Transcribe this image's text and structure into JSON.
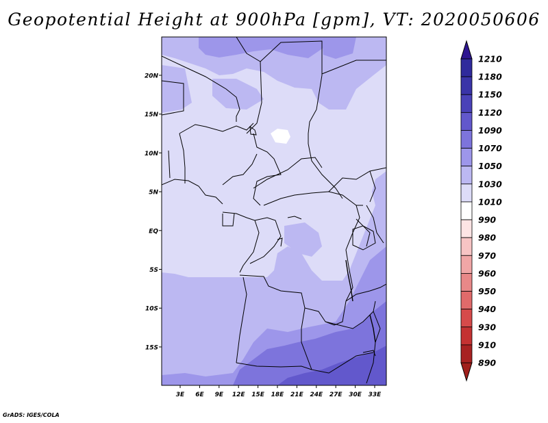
{
  "title": "Geopotential Height at 900hPa [gpm], VT: 2020050606",
  "credit": "GrADS: IGES/COLA",
  "map": {
    "lat_range": [
      -19.5,
      24.5
    ],
    "lon_range": [
      0,
      34
    ],
    "lat_ticks": [
      {
        "label": "20N"
      },
      {
        "label": "15N"
      },
      {
        "label": "10N"
      },
      {
        "label": "5N"
      },
      {
        "label": "EQ"
      },
      {
        "label": "5S"
      },
      {
        "label": "10S"
      },
      {
        "label": "15S"
      }
    ],
    "lon_ticks": [
      {
        "label": "3E"
      },
      {
        "label": "6E"
      },
      {
        "label": "9E"
      },
      {
        "label": "12E"
      },
      {
        "label": "15E"
      },
      {
        "label": "18E"
      },
      {
        "label": "21E"
      },
      {
        "label": "24E"
      },
      {
        "label": "27E"
      },
      {
        "label": "30E"
      },
      {
        "label": "33E"
      }
    ]
  },
  "colorbar": {
    "levels": [
      {
        "label": "1210",
        "color": "#3c1ea0"
      },
      {
        "label": "1180",
        "color": "#2f2a9c"
      },
      {
        "label": "1150",
        "color": "#3a34a8"
      },
      {
        "label": "1120",
        "color": "#4a42b8"
      },
      {
        "label": "1090",
        "color": "#6258cc"
      },
      {
        "label": "1070",
        "color": "#7d74dc"
      },
      {
        "label": "1050",
        "color": "#9d96ea"
      },
      {
        "label": "1030",
        "color": "#bcb8f2"
      },
      {
        "label": "1010",
        "color": "#dddcf8"
      },
      {
        "label": "990",
        "color": "#ffffff"
      },
      {
        "label": "980",
        "color": "#fde4e4"
      },
      {
        "label": "970",
        "color": "#f7c4c4"
      },
      {
        "label": "960",
        "color": "#f0a6a6"
      },
      {
        "label": "950",
        "color": "#e88888"
      },
      {
        "label": "940",
        "color": "#e06a6a"
      },
      {
        "label": "930",
        "color": "#d64a4a"
      },
      {
        "label": "910",
        "color": "#c43232"
      },
      {
        "label": "890",
        "color": "#a82222"
      }
    ],
    "top_arrow_color": "#2e1690",
    "bottom_arrow_color": "#a0201c"
  }
}
